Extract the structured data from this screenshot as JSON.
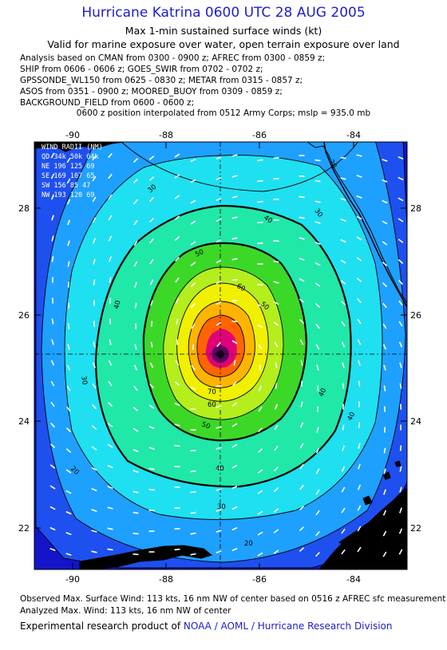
{
  "header": {
    "title": "Hurricane Katrina 0600 UTC 28 AUG 2005",
    "subtitle1": "Max 1-min sustained surface winds (kt)",
    "subtitle2": "Valid for marine exposure over water, open terrain exposure over land"
  },
  "analysis_lines": [
    "Analysis based on  CMAN from 0300 - 0900 z;  AFREC from 0300 - 0859 z;",
    "SHIP from 0606 - 0606 z;  GOES_SWIR from 0702 - 0702 z;",
    "GPSSONDE_WL150 from 0625 - 0830 z;  METAR from 0315 - 0857 z;",
    "ASOS from 0351 - 0900 z;  MOORED_BUOY from 0309 - 0859 z;",
    "BACKGROUND_FIELD from 0600 - 0600 z;"
  ],
  "position_note": "0600 z position interpolated from 0512 Army Corps; mslp = 935.0 mb",
  "map": {
    "lon_ticks": [
      "-90",
      "-88",
      "-86",
      "-84"
    ],
    "lat_ticks": [
      "28",
      "26",
      "24",
      "22"
    ],
    "wind_radii": {
      "title": "WIND RADII (NM)",
      "header": "QD  34k  50k  64k",
      "rows": [
        "NE  196  125   69",
        "SE  169  107   65",
        "SW  156   85   47",
        "NW  193  120   69"
      ]
    },
    "contour_labels": [
      "20",
      "20",
      "20",
      "30",
      "30",
      "30",
      "30",
      "40",
      "40",
      "40",
      "40",
      "40",
      "50",
      "50",
      "50",
      "60",
      "60",
      "70"
    ],
    "colors": {
      "c10": "#1414c8",
      "c20": "#1e50f0",
      "c30": "#1ea0ff",
      "c40": "#1ee0f0",
      "c50": "#20e8a8",
      "c60": "#3cd828",
      "c70": "#b4ee1c",
      "c80": "#f0f000",
      "c90": "#ffb400",
      "c100": "#ff6400",
      "c110": "#e00078",
      "eye": "#600060"
    }
  },
  "footer": {
    "line1": "Observed Max. Surface Wind: 113 kts, 16 nm NW of center based on 0516 z AFREC sfc measurement",
    "line2": "Analyzed Max. Wind: 113 kts, 16 nm NW of center",
    "credit_prefix": "Experimental research product of ",
    "credit_link": "NOAA / AOML / Hurricane Research Division"
  }
}
